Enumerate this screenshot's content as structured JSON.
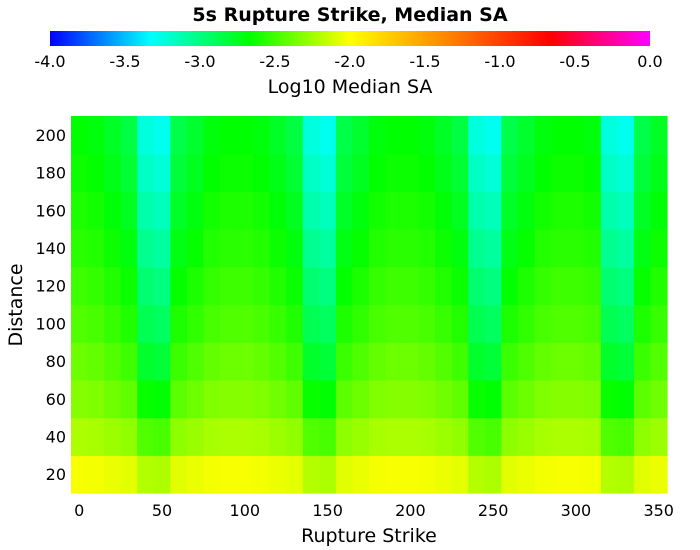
{
  "chart_data": {
    "type": "heatmap",
    "title": "5s Rupture Strike, Median SA",
    "xlabel": "Rupture Strike",
    "ylabel": "Distance",
    "xlim": [
      -5,
      355
    ],
    "ylim": [
      10,
      210
    ],
    "x_ticks": [
      "0",
      "50",
      "100",
      "150",
      "200",
      "250",
      "300",
      "350"
    ],
    "y_ticks": [
      "20",
      "40",
      "60",
      "80",
      "100",
      "120",
      "140",
      "160",
      "180",
      "200"
    ],
    "x_step": 10,
    "x": [
      0,
      10,
      20,
      30,
      40,
      50,
      60,
      70,
      80,
      90,
      100,
      110,
      120,
      130,
      140,
      150,
      160,
      170,
      180,
      190,
      200,
      210,
      220,
      230,
      240,
      250,
      260,
      270,
      280,
      290,
      300,
      310,
      320,
      330,
      340,
      350
    ],
    "y_step": 20,
    "y": [
      20,
      40,
      60,
      80,
      100,
      120,
      140,
      160,
      180,
      200
    ],
    "colorbar": {
      "label": "Log10 Median SA",
      "range": [
        -4.0,
        0.0
      ],
      "ticks": [
        "-4.0",
        "-3.5",
        "-3.0",
        "-2.5",
        "-2.0",
        "-1.5",
        "-1.0",
        "-0.5",
        "0.0"
      ],
      "stops": [
        {
          "v": -4.0,
          "color": "#0000ff"
        },
        {
          "v": -3.33,
          "color": "#00ffff"
        },
        {
          "v": -2.67,
          "color": "#00ff00"
        },
        {
          "v": -2.0,
          "color": "#ffff00"
        },
        {
          "v": -1.33,
          "color": "#ff8000"
        },
        {
          "v": -0.67,
          "color": "#ff0000"
        },
        {
          "v": 0.0,
          "color": "#ff00ff"
        }
      ]
    },
    "profile": [
      0.2,
      0.17,
      0.1,
      0.02,
      -0.4,
      -0.45,
      0.0,
      0.08,
      0.17,
      0.2,
      0.2,
      0.17,
      0.1,
      0.02,
      -0.4,
      -0.45,
      0.0,
      0.08,
      0.17,
      0.2,
      0.2,
      0.17,
      0.1,
      0.02,
      -0.4,
      -0.45,
      0.0,
      0.08,
      0.17,
      0.2,
      0.2,
      0.17,
      -0.4,
      -0.45,
      0.0,
      0.1
    ],
    "base_by_distance": [
      -2.08,
      -2.3,
      -2.43,
      -2.52,
      -2.6,
      -2.66,
      -2.72,
      -2.77,
      -2.82,
      -2.86
    ],
    "profile_scale": [
      0.3,
      0.4,
      0.55,
      0.65,
      0.7,
      0.75,
      0.8,
      0.85,
      0.9,
      0.95
    ]
  }
}
